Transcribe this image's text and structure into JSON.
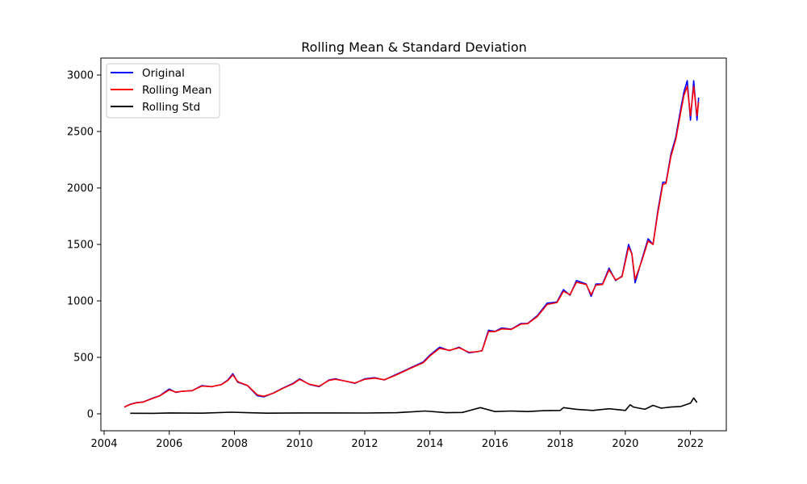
{
  "chart_data": {
    "type": "line",
    "title": "Rolling Mean & Standard Deviation",
    "xlabel": "",
    "ylabel": "",
    "xlim": [
      2003.9,
      2023.1
    ],
    "ylim": [
      -150,
      3150
    ],
    "x_ticks": [
      2004,
      2006,
      2008,
      2010,
      2012,
      2014,
      2016,
      2018,
      2020,
      2022
    ],
    "x_tick_labels": [
      "2004",
      "2006",
      "2008",
      "2010",
      "2012",
      "2014",
      "2016",
      "2018",
      "2020",
      "2022"
    ],
    "y_ticks": [
      0,
      500,
      1000,
      1500,
      2000,
      2500,
      3000
    ],
    "y_tick_labels": [
      "0",
      "500",
      "1000",
      "1500",
      "2000",
      "2500",
      "3000"
    ],
    "grid": false,
    "legend_position": "top-left",
    "series": [
      {
        "name": "Original",
        "color": "#0000ff",
        "x": [
          2004.62,
          2004.8,
          2005.0,
          2005.2,
          2005.5,
          2005.7,
          2006.0,
          2006.2,
          2006.4,
          2006.7,
          2007.0,
          2007.3,
          2007.6,
          2007.8,
          2007.95,
          2008.1,
          2008.4,
          2008.7,
          2008.9,
          2009.2,
          2009.5,
          2009.8,
          2010.0,
          2010.3,
          2010.6,
          2010.9,
          2011.1,
          2011.4,
          2011.7,
          2012.0,
          2012.3,
          2012.6,
          2012.9,
          2013.2,
          2013.5,
          2013.8,
          2014.0,
          2014.3,
          2014.6,
          2014.9,
          2015.2,
          2015.45,
          2015.6,
          2015.8,
          2016.0,
          2016.2,
          2016.5,
          2016.8,
          2017.0,
          2017.3,
          2017.6,
          2017.9,
          2018.1,
          2018.3,
          2018.5,
          2018.8,
          2018.95,
          2019.1,
          2019.3,
          2019.5,
          2019.7,
          2019.9,
          2020.1,
          2020.2,
          2020.3,
          2020.5,
          2020.7,
          2020.85,
          2021.0,
          2021.15,
          2021.25,
          2021.4,
          2021.55,
          2021.7,
          2021.8,
          2021.9,
          2022.0,
          2022.1,
          2022.2,
          2022.25
        ],
        "values": [
          60,
          85,
          100,
          105,
          140,
          160,
          220,
          190,
          200,
          205,
          250,
          240,
          260,
          300,
          355,
          280,
          250,
          160,
          150,
          185,
          230,
          270,
          310,
          260,
          240,
          300,
          310,
          290,
          270,
          310,
          320,
          300,
          340,
          380,
          420,
          460,
          520,
          590,
          560,
          590,
          540,
          550,
          560,
          740,
          730,
          760,
          750,
          800,
          800,
          870,
          980,
          990,
          1100,
          1050,
          1180,
          1150,
          1040,
          1150,
          1150,
          1290,
          1180,
          1220,
          1500,
          1420,
          1160,
          1360,
          1550,
          1500,
          1800,
          2050,
          2050,
          2300,
          2450,
          2700,
          2850,
          2950,
          2600,
          2950,
          2600,
          2800
        ]
      },
      {
        "name": "Rolling Mean",
        "color": "#ff0000",
        "x": [
          2004.62,
          2004.8,
          2005.0,
          2005.2,
          2005.5,
          2005.7,
          2006.0,
          2006.2,
          2006.4,
          2006.7,
          2007.0,
          2007.3,
          2007.6,
          2007.8,
          2007.95,
          2008.1,
          2008.4,
          2008.7,
          2008.9,
          2009.2,
          2009.5,
          2009.8,
          2010.0,
          2010.3,
          2010.6,
          2010.9,
          2011.1,
          2011.4,
          2011.7,
          2012.0,
          2012.3,
          2012.6,
          2012.9,
          2013.2,
          2013.5,
          2013.8,
          2014.0,
          2014.3,
          2014.6,
          2014.9,
          2015.2,
          2015.45,
          2015.6,
          2015.8,
          2016.0,
          2016.2,
          2016.5,
          2016.8,
          2017.0,
          2017.3,
          2017.6,
          2017.9,
          2018.1,
          2018.3,
          2018.5,
          2018.8,
          2018.95,
          2019.1,
          2019.3,
          2019.5,
          2019.7,
          2019.9,
          2020.1,
          2020.2,
          2020.3,
          2020.5,
          2020.7,
          2020.85,
          2021.0,
          2021.15,
          2021.25,
          2021.4,
          2021.55,
          2021.7,
          2021.8,
          2021.9,
          2022.0,
          2022.1,
          2022.2,
          2022.25
        ],
        "values": [
          60,
          83,
          98,
          104,
          138,
          158,
          212,
          192,
          199,
          205,
          246,
          241,
          258,
          296,
          345,
          285,
          252,
          168,
          155,
          183,
          227,
          266,
          305,
          262,
          244,
          296,
          306,
          290,
          273,
          306,
          316,
          302,
          336,
          376,
          415,
          453,
          512,
          580,
          562,
          585,
          545,
          550,
          558,
          728,
          728,
          752,
          748,
          795,
          798,
          862,
          968,
          985,
          1085,
          1055,
          1165,
          1145,
          1055,
          1140,
          1145,
          1275,
          1185,
          1215,
          1475,
          1420,
          1190,
          1350,
          1530,
          1500,
          1780,
          2030,
          2040,
          2280,
          2430,
          2670,
          2820,
          2900,
          2640,
          2900,
          2640,
          2760
        ]
      },
      {
        "name": "Rolling Std",
        "color": "#000000",
        "x": [
          2004.8,
          2005.5,
          2006.0,
          2007.0,
          2007.9,
          2008.5,
          2009.0,
          2010.0,
          2011.0,
          2012.0,
          2013.0,
          2013.85,
          2014.5,
          2015.0,
          2015.55,
          2016.0,
          2016.5,
          2017.0,
          2017.5,
          2018.0,
          2018.1,
          2018.5,
          2019.0,
          2019.5,
          2020.0,
          2020.15,
          2020.25,
          2020.6,
          2020.85,
          2021.1,
          2021.4,
          2021.7,
          2022.0,
          2022.1,
          2022.2
        ],
        "values": [
          5,
          4,
          8,
          6,
          14,
          9,
          6,
          8,
          8,
          7,
          10,
          25,
          10,
          12,
          55,
          20,
          25,
          20,
          28,
          30,
          55,
          40,
          30,
          45,
          30,
          80,
          60,
          40,
          75,
          50,
          60,
          65,
          95,
          140,
          100
        ]
      }
    ]
  }
}
